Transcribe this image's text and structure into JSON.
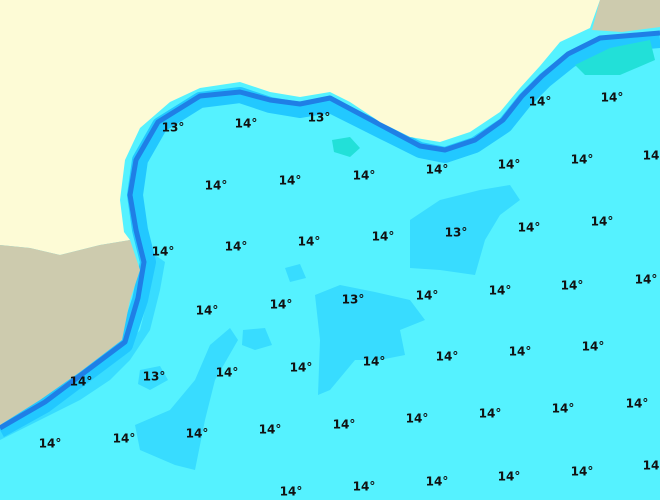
{
  "map": {
    "labels": [
      "13°",
      "14°",
      "13°",
      "14°",
      "14°",
      "14°",
      "14°",
      "14°",
      "14°",
      "14°",
      "14°",
      "14°",
      "14°",
      "14°",
      "14°",
      "14°",
      "13°",
      "14°",
      "14°",
      "14°",
      "14°",
      "13°",
      "14°",
      "14°",
      "14°",
      "14°",
      "14°",
      "13°",
      "14°",
      "14°",
      "14°",
      "14°",
      "14°",
      "14°",
      "14°",
      "14°",
      "14°",
      "14°",
      "14°",
      "14°",
      "14°",
      "14°",
      "14°",
      "14°",
      "14°",
      "14°",
      "14°",
      "14°",
      "14°"
    ]
  }
}
